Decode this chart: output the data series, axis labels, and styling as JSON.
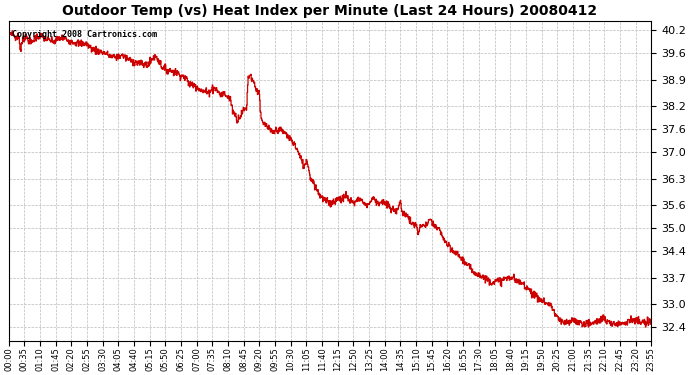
{
  "title": "Outdoor Temp (vs) Heat Index per Minute (Last 24 Hours) 20080412",
  "copyright": "Copyright 2008 Cartronics.com",
  "line_color": "#cc0000",
  "bg_color": "#ffffff",
  "grid_color": "#bbbbbb",
  "yticks": [
    32.4,
    33.0,
    33.7,
    34.4,
    35.0,
    35.6,
    36.3,
    37.0,
    37.6,
    38.2,
    38.9,
    39.6,
    40.2
  ],
  "ylim": [
    32.05,
    40.45
  ],
  "xtick_labels": [
    "00:00",
    "00:35",
    "01:10",
    "01:45",
    "02:20",
    "02:55",
    "03:30",
    "04:05",
    "04:40",
    "05:15",
    "05:50",
    "06:25",
    "07:00",
    "07:35",
    "08:10",
    "08:45",
    "09:20",
    "09:55",
    "10:30",
    "11:05",
    "11:40",
    "12:15",
    "12:50",
    "13:25",
    "14:00",
    "14:35",
    "15:10",
    "15:45",
    "16:20",
    "16:55",
    "17:30",
    "18:05",
    "18:40",
    "19:15",
    "19:50",
    "20:25",
    "21:00",
    "21:35",
    "22:10",
    "22:45",
    "23:20",
    "23:55"
  ],
  "num_points": 1440,
  "waypoints": [
    [
      0.0,
      40.1
    ],
    [
      0.005,
      40.15
    ],
    [
      0.01,
      40.0
    ],
    [
      0.015,
      40.05
    ],
    [
      0.018,
      39.7
    ],
    [
      0.022,
      40.0
    ],
    [
      0.028,
      40.0
    ],
    [
      0.035,
      39.85
    ],
    [
      0.04,
      40.0
    ],
    [
      0.05,
      40.05
    ],
    [
      0.06,
      39.95
    ],
    [
      0.07,
      39.9
    ],
    [
      0.08,
      40.0
    ],
    [
      0.09,
      39.95
    ],
    [
      0.1,
      39.9
    ],
    [
      0.11,
      39.85
    ],
    [
      0.12,
      39.85
    ],
    [
      0.13,
      39.7
    ],
    [
      0.14,
      39.65
    ],
    [
      0.15,
      39.6
    ],
    [
      0.155,
      39.55
    ],
    [
      0.16,
      39.5
    ],
    [
      0.17,
      39.5
    ],
    [
      0.175,
      39.55
    ],
    [
      0.18,
      39.5
    ],
    [
      0.19,
      39.4
    ],
    [
      0.2,
      39.35
    ],
    [
      0.21,
      39.3
    ],
    [
      0.218,
      39.3
    ],
    [
      0.225,
      39.5
    ],
    [
      0.23,
      39.5
    ],
    [
      0.235,
      39.35
    ],
    [
      0.24,
      39.2
    ],
    [
      0.25,
      39.15
    ],
    [
      0.26,
      39.1
    ],
    [
      0.27,
      39.0
    ],
    [
      0.275,
      38.95
    ],
    [
      0.28,
      38.8
    ],
    [
      0.29,
      38.75
    ],
    [
      0.295,
      38.7
    ],
    [
      0.3,
      38.6
    ],
    [
      0.305,
      38.6
    ],
    [
      0.31,
      38.55
    ],
    [
      0.315,
      38.65
    ],
    [
      0.32,
      38.7
    ],
    [
      0.325,
      38.6
    ],
    [
      0.33,
      38.5
    ],
    [
      0.335,
      38.55
    ],
    [
      0.34,
      38.45
    ],
    [
      0.345,
      38.4
    ],
    [
      0.348,
      38.1
    ],
    [
      0.352,
      38.0
    ],
    [
      0.355,
      37.85
    ],
    [
      0.36,
      37.95
    ],
    [
      0.365,
      38.1
    ],
    [
      0.37,
      38.15
    ],
    [
      0.372,
      38.9
    ],
    [
      0.375,
      39.05
    ],
    [
      0.378,
      38.95
    ],
    [
      0.382,
      38.8
    ],
    [
      0.385,
      38.65
    ],
    [
      0.39,
      38.55
    ],
    [
      0.392,
      37.9
    ],
    [
      0.395,
      37.75
    ],
    [
      0.4,
      37.7
    ],
    [
      0.405,
      37.6
    ],
    [
      0.41,
      37.5
    ],
    [
      0.415,
      37.55
    ],
    [
      0.42,
      37.6
    ],
    [
      0.425,
      37.55
    ],
    [
      0.43,
      37.5
    ],
    [
      0.435,
      37.4
    ],
    [
      0.44,
      37.3
    ],
    [
      0.445,
      37.2
    ],
    [
      0.45,
      37.0
    ],
    [
      0.455,
      36.8
    ],
    [
      0.46,
      36.6
    ],
    [
      0.463,
      36.8
    ],
    [
      0.465,
      36.75
    ],
    [
      0.467,
      36.5
    ],
    [
      0.47,
      36.3
    ],
    [
      0.475,
      36.2
    ],
    [
      0.48,
      36.0
    ],
    [
      0.485,
      35.85
    ],
    [
      0.49,
      35.75
    ],
    [
      0.495,
      35.7
    ],
    [
      0.5,
      35.65
    ],
    [
      0.505,
      35.7
    ],
    [
      0.51,
      35.75
    ],
    [
      0.515,
      35.8
    ],
    [
      0.52,
      35.75
    ],
    [
      0.525,
      35.9
    ],
    [
      0.528,
      35.75
    ],
    [
      0.531,
      35.7
    ],
    [
      0.534,
      35.75
    ],
    [
      0.537,
      35.65
    ],
    [
      0.54,
      35.7
    ],
    [
      0.543,
      35.75
    ],
    [
      0.546,
      35.8
    ],
    [
      0.55,
      35.7
    ],
    [
      0.553,
      35.65
    ],
    [
      0.556,
      35.6
    ],
    [
      0.56,
      35.65
    ],
    [
      0.563,
      35.7
    ],
    [
      0.566,
      35.8
    ],
    [
      0.57,
      35.75
    ],
    [
      0.575,
      35.65
    ],
    [
      0.58,
      35.7
    ],
    [
      0.585,
      35.65
    ],
    [
      0.59,
      35.6
    ],
    [
      0.595,
      35.5
    ],
    [
      0.6,
      35.45
    ],
    [
      0.605,
      35.5
    ],
    [
      0.608,
      35.7
    ],
    [
      0.61,
      35.65
    ],
    [
      0.613,
      35.3
    ],
    [
      0.616,
      35.4
    ],
    [
      0.62,
      35.35
    ],
    [
      0.625,
      35.15
    ],
    [
      0.63,
      35.1
    ],
    [
      0.635,
      35.05
    ],
    [
      0.637,
      34.85
    ],
    [
      0.64,
      35.0
    ],
    [
      0.643,
      35.1
    ],
    [
      0.648,
      35.05
    ],
    [
      0.652,
      35.15
    ],
    [
      0.658,
      35.2
    ],
    [
      0.66,
      35.1
    ],
    [
      0.665,
      35.0
    ],
    [
      0.67,
      34.95
    ],
    [
      0.675,
      34.8
    ],
    [
      0.68,
      34.6
    ],
    [
      0.685,
      34.5
    ],
    [
      0.69,
      34.4
    ],
    [
      0.695,
      34.35
    ],
    [
      0.7,
      34.3
    ],
    [
      0.705,
      34.2
    ],
    [
      0.71,
      34.1
    ],
    [
      0.715,
      34.0
    ],
    [
      0.72,
      33.9
    ],
    [
      0.73,
      33.8
    ],
    [
      0.735,
      33.75
    ],
    [
      0.74,
      33.7
    ],
    [
      0.745,
      33.65
    ],
    [
      0.75,
      33.6
    ],
    [
      0.76,
      33.6
    ],
    [
      0.77,
      33.65
    ],
    [
      0.778,
      33.7
    ],
    [
      0.785,
      33.7
    ],
    [
      0.79,
      33.6
    ],
    [
      0.8,
      33.55
    ],
    [
      0.81,
      33.4
    ],
    [
      0.82,
      33.2
    ],
    [
      0.83,
      33.1
    ],
    [
      0.84,
      33.0
    ],
    [
      0.845,
      32.95
    ],
    [
      0.85,
      32.75
    ],
    [
      0.858,
      32.55
    ],
    [
      0.865,
      32.5
    ],
    [
      0.875,
      32.55
    ],
    [
      0.88,
      32.6
    ],
    [
      0.885,
      32.55
    ],
    [
      0.89,
      32.5
    ],
    [
      0.9,
      32.5
    ],
    [
      0.91,
      32.5
    ],
    [
      0.92,
      32.6
    ],
    [
      0.925,
      32.65
    ],
    [
      0.93,
      32.55
    ],
    [
      0.935,
      32.5
    ],
    [
      0.94,
      32.5
    ],
    [
      0.95,
      32.5
    ],
    [
      0.96,
      32.55
    ],
    [
      0.97,
      32.6
    ],
    [
      0.98,
      32.55
    ],
    [
      0.99,
      32.5
    ],
    [
      1.0,
      32.55
    ]
  ]
}
